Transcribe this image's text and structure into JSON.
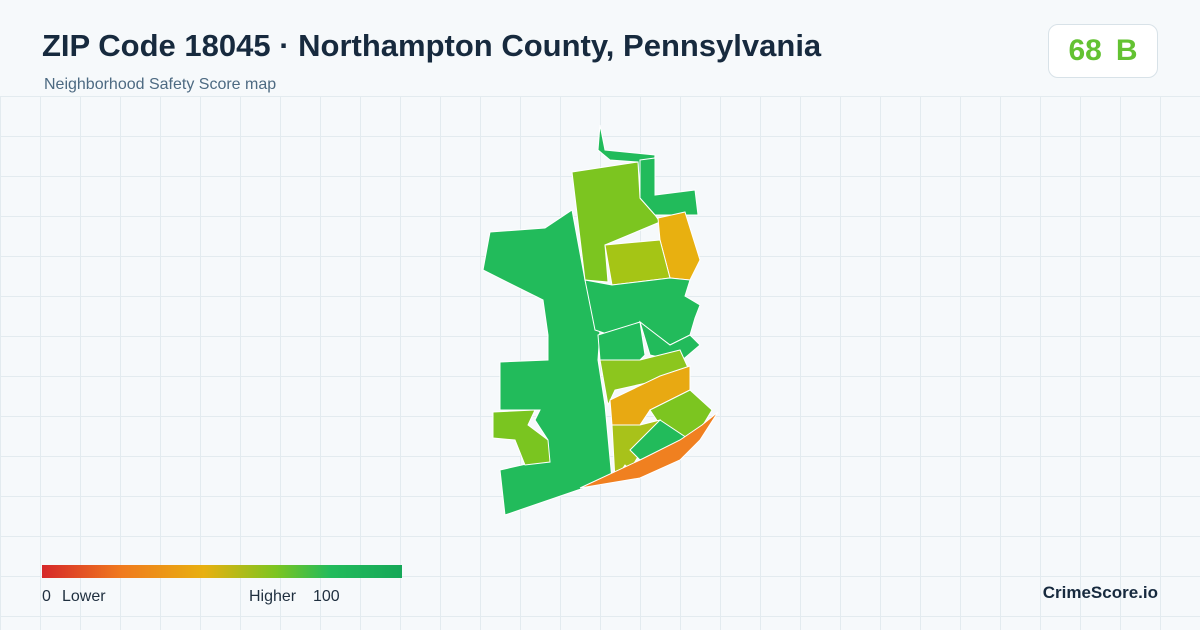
{
  "header": {
    "title": "ZIP Code 18045 · Northampton County, Pennsylvania",
    "subtitle": "Neighborhood Safety Score map"
  },
  "score": {
    "value": "68",
    "grade": "B"
  },
  "legend": {
    "min": "0",
    "min_label": "Lower",
    "max_label": "Higher",
    "max": "100"
  },
  "brand": "CrimeScore.io"
}
